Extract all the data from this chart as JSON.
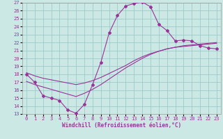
{
  "xlabel": "Windchill (Refroidissement éolien,°C)",
  "bg_color": "#cce8e4",
  "line_color": "#993399",
  "grid_color": "#99cccc",
  "xlim": [
    -0.5,
    23.5
  ],
  "ylim": [
    13,
    27
  ],
  "yticks": [
    13,
    14,
    15,
    16,
    17,
    18,
    19,
    20,
    21,
    22,
    23,
    24,
    25,
    26,
    27
  ],
  "xticks": [
    0,
    1,
    2,
    3,
    4,
    5,
    6,
    7,
    8,
    9,
    10,
    11,
    12,
    13,
    14,
    15,
    16,
    17,
    18,
    19,
    20,
    21,
    22,
    23
  ],
  "curve1_x": [
    0,
    1,
    2,
    3,
    4,
    5,
    6,
    7,
    8,
    9,
    10,
    11,
    12,
    13,
    14,
    15,
    16,
    17,
    18,
    19,
    20,
    21,
    22,
    23
  ],
  "curve1_y": [
    18,
    17,
    15.3,
    15.0,
    14.7,
    13.5,
    13.1,
    14.2,
    16.7,
    19.5,
    23.2,
    25.4,
    26.6,
    26.9,
    27.1,
    26.5,
    24.3,
    23.5,
    22.2,
    22.3,
    22.2,
    21.6,
    21.3,
    21.2
  ],
  "curve2_x": [
    0,
    1,
    2,
    3,
    4,
    5,
    6,
    7,
    8,
    9,
    10,
    11,
    12,
    13,
    14,
    15,
    16,
    17,
    18,
    19,
    20,
    21,
    22,
    23
  ],
  "curve2_y": [
    18.2,
    17.8,
    17.5,
    17.3,
    17.1,
    16.9,
    16.7,
    16.9,
    17.2,
    17.6,
    18.1,
    18.6,
    19.1,
    19.7,
    20.2,
    20.6,
    20.9,
    21.2,
    21.4,
    21.5,
    21.6,
    21.7,
    21.8,
    21.9
  ],
  "curve3_x": [
    0,
    1,
    2,
    3,
    4,
    5,
    6,
    7,
    8,
    9,
    10,
    11,
    12,
    13,
    14,
    15,
    16,
    17,
    18,
    19,
    20,
    21,
    22,
    23
  ],
  "curve3_y": [
    17.1,
    16.7,
    16.4,
    16.1,
    15.8,
    15.5,
    15.2,
    15.6,
    16.1,
    16.7,
    17.4,
    18.1,
    18.8,
    19.4,
    20.0,
    20.5,
    20.9,
    21.2,
    21.4,
    21.6,
    21.7,
    21.8,
    21.9,
    22.0
  ]
}
